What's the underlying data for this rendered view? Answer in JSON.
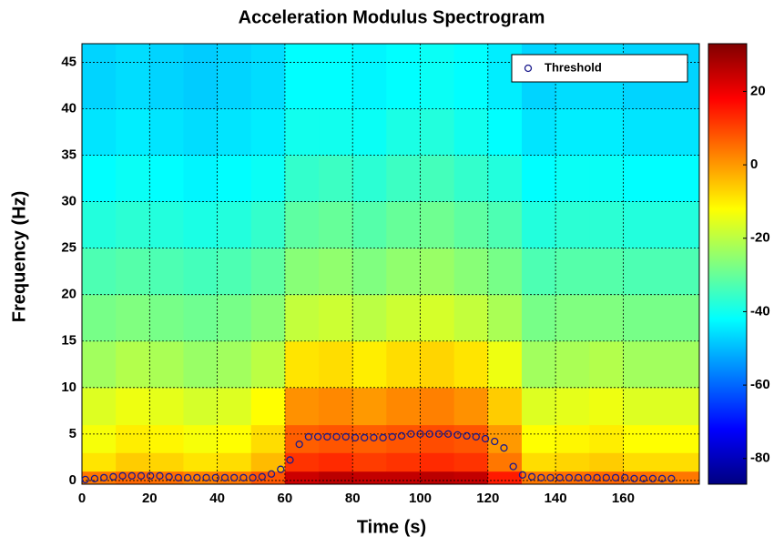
{
  "chart_data": {
    "type": "spectrogram",
    "title": "Acceleration Modulus Spectrogram",
    "x_label": "Time (s)",
    "y_label": "Frequency (Hz)",
    "xlim": [
      0,
      182.5
    ],
    "ylim": [
      -0.4,
      47
    ],
    "xticks": [
      0,
      20,
      40,
      60,
      80,
      100,
      120,
      140,
      160
    ],
    "yticks": [
      0,
      5,
      10,
      15,
      20,
      25,
      30,
      35,
      40,
      45
    ],
    "grid": true,
    "legend": "upper right",
    "colormap": "jet",
    "clim": [
      -87,
      33
    ],
    "colorbar_ticks": [
      -80,
      -60,
      -40,
      -20,
      0,
      20
    ],
    "heatmap": {
      "time_edges": [
        0,
        10,
        20,
        30,
        40,
        50,
        60,
        70,
        80,
        90,
        100,
        110,
        120,
        130,
        140,
        150,
        160,
        170,
        182.5
      ],
      "freq_edges": [
        -0.4,
        1,
        3,
        6,
        10,
        15,
        20,
        25,
        30,
        35,
        40,
        47
      ],
      "values": [
        [
          4,
          -9,
          -13,
          -16,
          -23,
          -28,
          -33,
          -38,
          -42,
          -45,
          -47
        ],
        [
          6,
          -6,
          -10,
          -14,
          -21,
          -27,
          -32,
          -37,
          -41,
          -44,
          -46
        ],
        [
          5,
          -7,
          -11,
          -15,
          -22,
          -28,
          -33,
          -38,
          -42,
          -45,
          -47
        ],
        [
          3,
          -9,
          -13,
          -17,
          -24,
          -29,
          -34,
          -39,
          -43,
          -46,
          -48
        ],
        [
          4,
          -8,
          -12,
          -16,
          -23,
          -28,
          -33,
          -38,
          -42,
          -45,
          -47
        ],
        [
          8,
          -4,
          -8,
          -12,
          -20,
          -26,
          -31,
          -36,
          -41,
          -44,
          -46
        ],
        [
          24,
          12,
          7,
          1,
          -9,
          -19,
          -26,
          -31,
          -36,
          -40,
          -42
        ],
        [
          26,
          13,
          8,
          2,
          -8,
          -18,
          -25,
          -30,
          -35,
          -40,
          -42
        ],
        [
          25,
          11,
          7,
          0,
          -10,
          -20,
          -27,
          -32,
          -37,
          -41,
          -43
        ],
        [
          25,
          12,
          8,
          2,
          -8,
          -18,
          -25,
          -30,
          -35,
          -39,
          -42
        ],
        [
          26,
          13,
          9,
          3,
          -7,
          -17,
          -24,
          -29,
          -34,
          -38,
          -41
        ],
        [
          25,
          12,
          8,
          1,
          -9,
          -19,
          -26,
          -31,
          -36,
          -40,
          -42
        ],
        [
          15,
          4,
          0,
          -6,
          -14,
          -22,
          -28,
          -33,
          -38,
          -42,
          -44
        ],
        [
          4,
          -8,
          -12,
          -16,
          -23,
          -28,
          -33,
          -38,
          -42,
          -45,
          -47
        ],
        [
          5,
          -7,
          -11,
          -15,
          -22,
          -27,
          -32,
          -37,
          -41,
          -44,
          -46
        ],
        [
          6,
          -6,
          -10,
          -14,
          -21,
          -27,
          -32,
          -37,
          -41,
          -44,
          -46
        ],
        [
          5,
          -8,
          -12,
          -16,
          -23,
          -28,
          -33,
          -38,
          -42,
          -45,
          -47
        ],
        [
          4,
          -8,
          -12,
          -16,
          -23,
          -28,
          -33,
          -38,
          -42,
          -45,
          -47
        ],
        [
          3,
          -9,
          -13,
          -17,
          -24,
          -29,
          -34,
          -39,
          -43,
          -46,
          -48
        ]
      ]
    },
    "series": [
      {
        "name": "Threshold",
        "color": "#1a1a8c",
        "x": [
          1,
          3.75,
          6.5,
          9.25,
          12,
          14.75,
          17.5,
          20.25,
          23,
          25.75,
          28.5,
          31.25,
          34,
          36.75,
          39.5,
          42.25,
          45,
          47.75,
          50.5,
          53.25,
          56,
          58.75,
          61.5,
          64.25,
          67,
          69.75,
          72.5,
          75.25,
          78,
          80.75,
          83.5,
          86.25,
          89,
          91.75,
          94.5,
          97.25,
          100,
          102.75,
          105.5,
          108.25,
          111,
          113.75,
          116.5,
          119.25,
          122,
          124.75,
          127.5,
          130.25,
          133,
          135.75,
          138.5,
          141.25,
          144,
          146.75,
          149.5,
          152.25,
          155,
          157.75,
          160.5,
          163.25,
          166,
          168.75,
          171.5,
          174.25
        ],
        "values": [
          0.1,
          0.2,
          0.3,
          0.4,
          0.5,
          0.5,
          0.5,
          0.5,
          0.5,
          0.4,
          0.3,
          0.3,
          0.3,
          0.3,
          0.3,
          0.3,
          0.3,
          0.3,
          0.3,
          0.4,
          0.7,
          1.2,
          2.2,
          3.9,
          4.7,
          4.7,
          4.7,
          4.7,
          4.7,
          4.6,
          4.6,
          4.6,
          4.6,
          4.7,
          4.8,
          5.0,
          5.0,
          5.0,
          5.0,
          5.0,
          4.9,
          4.8,
          4.7,
          4.5,
          4.2,
          3.5,
          1.5,
          0.6,
          0.4,
          0.3,
          0.3,
          0.3,
          0.3,
          0.3,
          0.3,
          0.3,
          0.3,
          0.3,
          0.3,
          0.2,
          0.2,
          0.2,
          0.2,
          0.2
        ]
      }
    ]
  }
}
